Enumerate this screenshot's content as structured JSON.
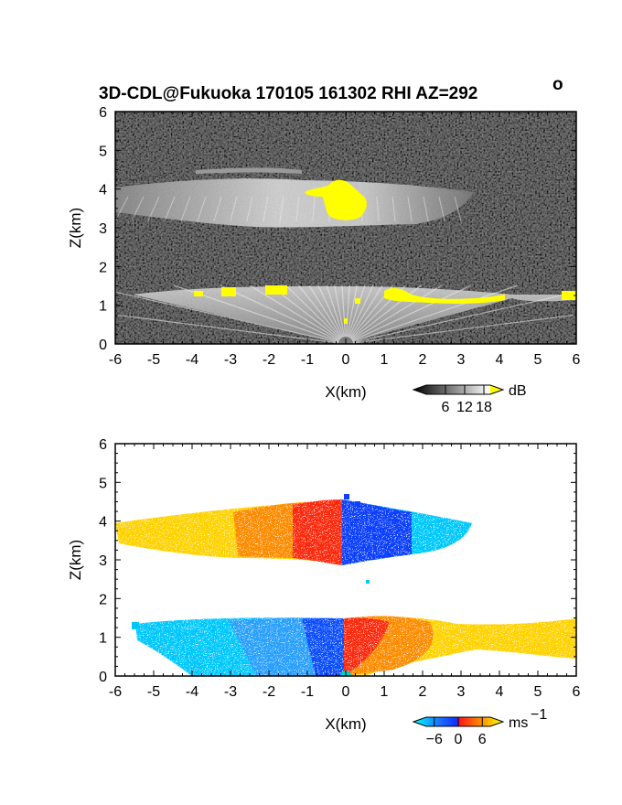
{
  "title": {
    "main": "3D-CDL@Fukuoka 170105 161302 RHI AZ=292",
    "degree": "o"
  },
  "chart_data": [
    {
      "type": "heatmap",
      "panel": "backscatter",
      "xlabel": "X(km)",
      "ylabel": "Z(km)",
      "xlim": [
        -6,
        6
      ],
      "ylim": [
        0,
        6
      ],
      "xticks": [
        "-6",
        "-5",
        "-4",
        "-3",
        "-2",
        "-1",
        "0",
        "1",
        "2",
        "3",
        "4",
        "5",
        "6"
      ],
      "yticks": [
        "0",
        "1",
        "2",
        "3",
        "4",
        "5",
        "6"
      ],
      "colorbar": {
        "unit": "dB",
        "tick_labels": [
          "6",
          "12",
          "18"
        ],
        "tick_values": [
          6,
          12,
          18
        ],
        "range": [
          0,
          20
        ],
        "colors": [
          "#000000",
          "#ffffff",
          "#ffff00"
        ]
      },
      "features": [
        {
          "kind": "upper cloud layer",
          "x_range": [
            -6,
            3.3
          ],
          "z_range": [
            3.1,
            4.3
          ]
        },
        {
          "kind": "lower cloud layer",
          "x_range": [
            -5.5,
            6
          ],
          "z_range": [
            0,
            1.4
          ]
        },
        {
          "kind": "saturated core",
          "x_range": [
            -1.0,
            0.6
          ],
          "z_range": [
            3.2,
            4.3
          ]
        }
      ]
    },
    {
      "type": "heatmap",
      "panel": "doppler velocity",
      "xlabel": "X(km)",
      "ylabel": "Z(km)",
      "xlim": [
        -6,
        6
      ],
      "ylim": [
        0,
        6
      ],
      "xticks": [
        "-6",
        "-5",
        "-4",
        "-3",
        "-2",
        "-1",
        "0",
        "1",
        "2",
        "3",
        "4",
        "5",
        "6"
      ],
      "yticks": [
        "0",
        "1",
        "2",
        "3",
        "4",
        "5",
        "6"
      ],
      "colorbar": {
        "unit": "ms",
        "unit_exponent": "−1",
        "tick_labels": [
          "−6",
          "0",
          "6"
        ],
        "tick_values": [
          -6,
          0,
          6
        ],
        "range": [
          -8,
          8
        ],
        "colors": [
          "#00ffff",
          "#1040ff",
          "#ff1010",
          "#ff8000",
          "#ffff00"
        ]
      },
      "features": [
        {
          "kind": "upper layer, away (positive)",
          "x_range": [
            -6,
            -0.1
          ],
          "z_range": [
            3.1,
            4.4
          ]
        },
        {
          "kind": "upper layer, toward (negative)",
          "x_range": [
            -0.1,
            3.3
          ],
          "z_range": [
            3.0,
            4.5
          ]
        },
        {
          "kind": "lower layer, toward (negative)",
          "x_range": [
            -5.5,
            0
          ],
          "z_range": [
            0,
            1.5
          ]
        },
        {
          "kind": "lower layer, away (positive)",
          "x_range": [
            0,
            6
          ],
          "z_range": [
            0,
            1.6
          ]
        }
      ]
    }
  ]
}
